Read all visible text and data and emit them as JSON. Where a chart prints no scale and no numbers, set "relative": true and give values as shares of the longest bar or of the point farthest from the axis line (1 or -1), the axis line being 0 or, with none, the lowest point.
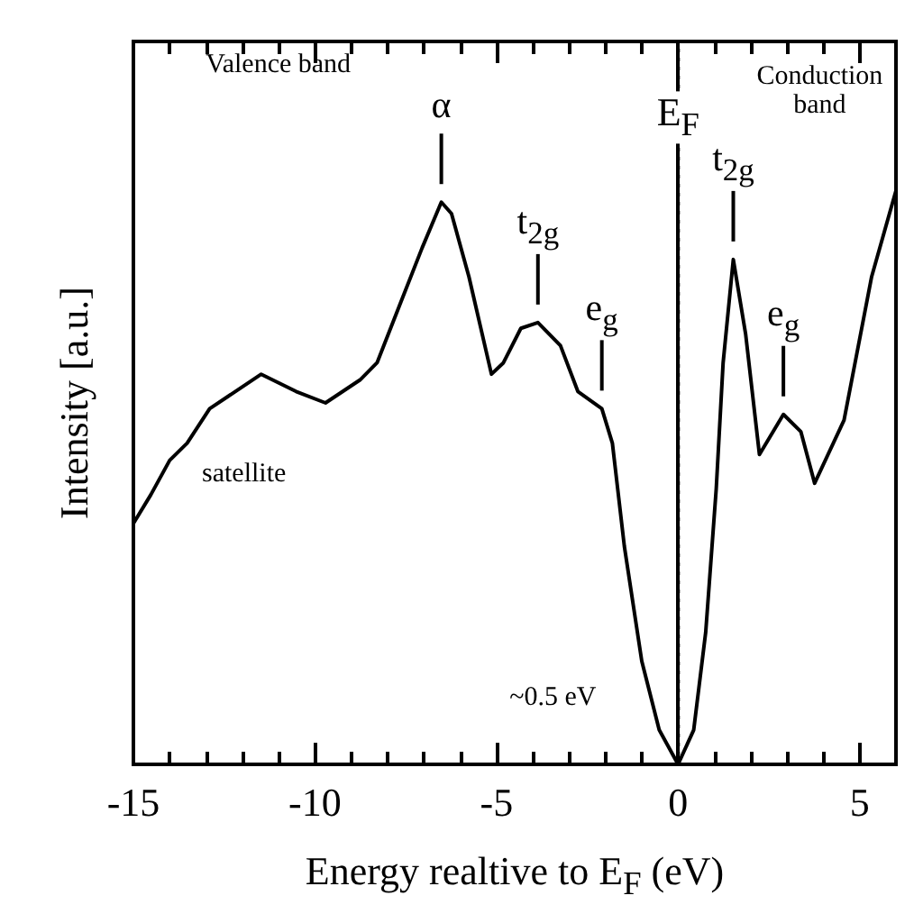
{
  "chart_data": {
    "type": "line",
    "relative": true,
    "xlabel": "Energy realtive to E$_{F}$ (eV)",
    "ylabel": "Intensity [a.u.]",
    "xlim": [
      -15,
      6
    ],
    "xticks": [
      -15,
      {
        "value": -14,
        "label": null
      },
      {
        "value": -13,
        "label": null
      },
      {
        "value": -12,
        "label": null
      },
      {
        "value": -11,
        "label": null
      },
      -10,
      {
        "value": -9,
        "label": null
      },
      {
        "value": -8,
        "label": null
      },
      {
        "value": -7,
        "label": null
      },
      {
        "value": -6,
        "label": null
      },
      -5,
      {
        "value": -4,
        "label": null
      },
      {
        "value": -3,
        "label": null
      },
      {
        "value": -2,
        "label": null
      },
      {
        "value": -1,
        "label": null
      },
      0,
      {
        "value": 1,
        "label": null
      },
      {
        "value": 2,
        "label": null
      },
      {
        "value": 3,
        "label": null
      },
      {
        "value": 4,
        "label": null
      },
      5
    ],
    "series": [
      {
        "color": "#000000",
        "x": [
          -15.0,
          -14.52,
          -14.0,
          -13.52,
          -12.9,
          -11.48,
          -10.52,
          -9.71,
          -8.76,
          -8.29,
          -7.67,
          -7.05,
          -6.52,
          -6.24,
          -5.76,
          -5.14,
          -4.81,
          -4.33,
          -3.86,
          -3.24,
          -2.76,
          -2.1,
          -1.81,
          -1.48,
          -1.0,
          -0.52,
          0,
          0.43,
          0.76,
          1.05,
          1.24,
          1.52,
          1.86,
          2.24,
          2.9,
          3.38,
          3.76,
          4.57,
          5.33,
          6.0
        ],
        "values": [
          0.42,
          0.47,
          0.53,
          0.56,
          0.62,
          0.68,
          0.65,
          0.63,
          0.67,
          0.7,
          0.8,
          0.9,
          0.98,
          0.96,
          0.85,
          0.68,
          0.7,
          0.76,
          0.77,
          0.73,
          0.65,
          0.62,
          0.56,
          0.38,
          0.18,
          0.06,
          0,
          0.06,
          0.23,
          0.48,
          0.7,
          0.88,
          0.75,
          0.54,
          0.61,
          0.58,
          0.49,
          0.6,
          0.85,
          1.0
        ]
      }
    ],
    "ref_lines": [
      {
        "axis": "x",
        "value": 0,
        "label": "E$_{F}$",
        "line_style": "dotted"
      }
    ],
    "annotations": [
      "Valence band",
      {
        "text": "α",
        "x": -6.52,
        "y": 0.98
      },
      {
        "text": "t$_{2g}$",
        "x": -3.86,
        "y": 0.77
      },
      {
        "text": "e$_{g}$",
        "x": -2.1,
        "y": 0.62
      },
      {
        "text": "t$_{2g}$",
        "x": 1.52,
        "y": 0.88
      },
      {
        "text": "e$_{g}$",
        "x": 2.9,
        "y": 0.61
      },
      "Conduction\nband",
      "satellite",
      "~0.5 eV"
    ],
    "marker": "none",
    "line_style": "solid"
  }
}
